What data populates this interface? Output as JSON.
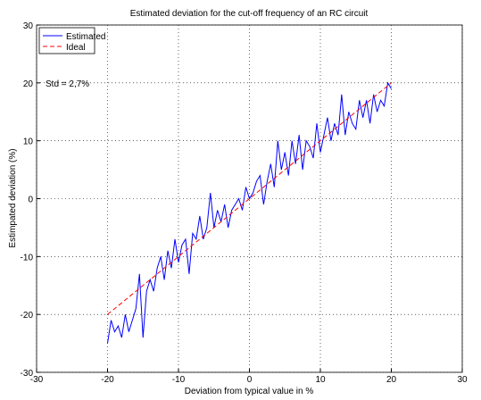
{
  "chart_data": {
    "type": "line",
    "title": "Estimated deviation for the cut-off frequency of an RC circuit",
    "xlabel": "Deviation from typical value in %",
    "ylabel": "Estimpated deviation (%)",
    "annotation": "Std = 2,7%",
    "grid": true,
    "legend": "upper left",
    "xlim": [
      -30,
      30
    ],
    "ylim": [
      -30,
      30
    ],
    "xticks": [
      -30,
      -20,
      -10,
      0,
      10,
      20,
      30
    ],
    "yticks": [
      -30,
      -20,
      -10,
      0,
      10,
      20,
      30
    ],
    "series": [
      {
        "name": "Estimated",
        "color": "#0000ff",
        "style": "solid",
        "x": [
          -20,
          -19.5,
          -19,
          -18.5,
          -18,
          -17.5,
          -17,
          -16.5,
          -16,
          -15.5,
          -15,
          -14.5,
          -14,
          -13.5,
          -13,
          -12.5,
          -12,
          -11.5,
          -11,
          -10.5,
          -10,
          -9.5,
          -9,
          -8.5,
          -8,
          -7.5,
          -7,
          -6.5,
          -6,
          -5.5,
          -5,
          -4.5,
          -4,
          -3.5,
          -3,
          -2.5,
          -2,
          -1.5,
          -1,
          -0.5,
          0,
          0.5,
          1,
          1.5,
          2,
          2.5,
          3,
          3.5,
          4,
          4.5,
          5,
          5.5,
          6,
          6.5,
          7,
          7.5,
          8,
          8.5,
          9,
          9.5,
          10,
          10.5,
          11,
          11.5,
          12,
          12.5,
          13,
          13.5,
          14,
          14.5,
          15,
          15.5,
          16,
          16.5,
          17,
          17.5,
          18,
          18.5,
          19,
          19.5,
          20
        ],
        "values": [
          -25,
          -21,
          -23,
          -22,
          -24,
          -20,
          -23,
          -21,
          -19,
          -13,
          -24,
          -16,
          -14,
          -16,
          -12,
          -10,
          -14,
          -9,
          -12,
          -7,
          -11,
          -8,
          -7,
          -13,
          -6,
          -7,
          -3,
          -7,
          -5,
          1,
          -5,
          -2,
          -4,
          -1,
          -5,
          -2,
          -1,
          0,
          -2,
          2,
          0,
          1,
          3,
          4,
          -1,
          3,
          6,
          2,
          10,
          5,
          8,
          4,
          10,
          6,
          11,
          5,
          10,
          9,
          7,
          13,
          8,
          11,
          14,
          10,
          13,
          11,
          18,
          11,
          15,
          13,
          12,
          17,
          14,
          17,
          13,
          18,
          15,
          17,
          16,
          20,
          19
        ]
      },
      {
        "name": "Ideal",
        "color": "#ff0000",
        "style": "dashed",
        "x": [
          -20,
          20
        ],
        "values": [
          -20,
          20
        ]
      }
    ]
  }
}
